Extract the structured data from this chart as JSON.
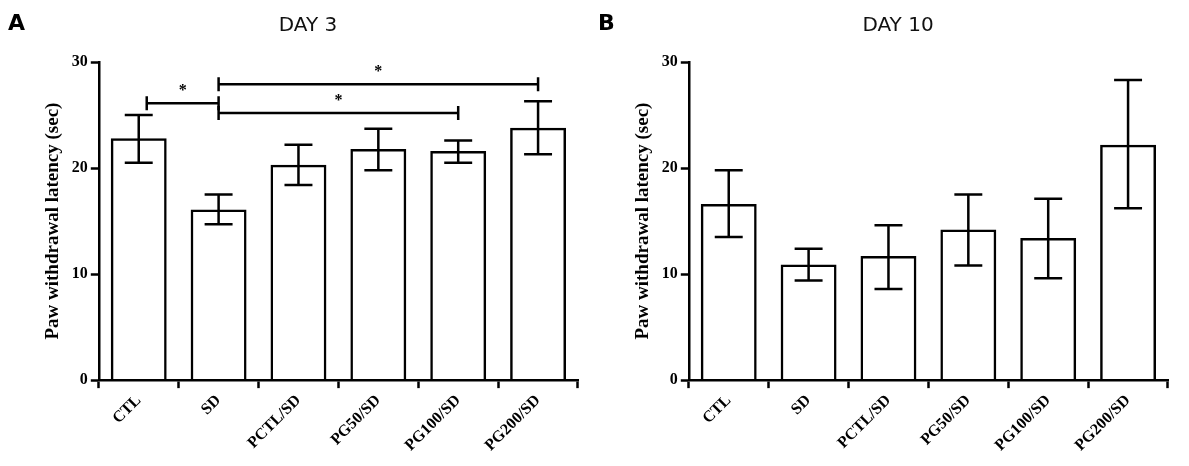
{
  "chart_data": [
    {
      "type": "bar",
      "title": "DAY 3",
      "ylabel": "Paw withdrawal latency (sec)",
      "categories": [
        "CTL",
        "SD",
        "PCTL/SD",
        "PG50/SD",
        "PG100/SD",
        "PG200/SD"
      ],
      "values": [
        22.8,
        16.1,
        20.3,
        21.8,
        21.6,
        23.8
      ],
      "errors": [
        [
          20.5,
          25.0
        ],
        [
          14.7,
          17.5
        ],
        [
          18.4,
          22.2
        ],
        [
          19.8,
          23.7
        ],
        [
          20.5,
          22.6
        ],
        [
          21.3,
          26.3
        ]
      ],
      "color": "#000000",
      "ylim": [
        0,
        30
      ],
      "yticks": [
        0,
        10,
        20,
        30
      ],
      "grid": false,
      "legend": false,
      "annotations": [
        "A",
        "*",
        "*",
        "*"
      ]
    },
    {
      "type": "bar",
      "title": "DAY 10",
      "ylabel": "Paw withdrawal latency (sec)",
      "categories": [
        "CTL",
        "SD",
        "PCTL/SD",
        "PG50/SD",
        "PG100/SD",
        "PG200/SD"
      ],
      "values": [
        16.6,
        10.9,
        11.7,
        14.2,
        13.4,
        22.2
      ],
      "errors": [
        [
          13.5,
          19.8
        ],
        [
          9.4,
          12.4
        ],
        [
          8.6,
          14.6
        ],
        [
          10.8,
          17.5
        ],
        [
          9.6,
          17.1
        ],
        [
          16.2,
          28.3
        ]
      ],
      "color": "#000000",
      "ylim": [
        0,
        30
      ],
      "yticks": [
        0,
        10,
        20,
        30
      ],
      "grid": false,
      "legend": false,
      "annotations": [
        "B"
      ]
    }
  ]
}
